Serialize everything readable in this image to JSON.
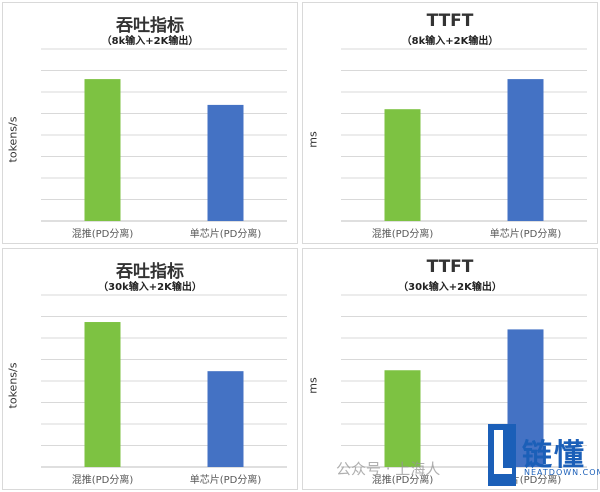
{
  "colors": {
    "green": "#7dc242",
    "blue": "#4472c4",
    "grid": "#d9d9d9",
    "axis": "#bfbfbf"
  },
  "chart_data": [
    {
      "type": "bar",
      "title": "吞吐指标",
      "subtitle": "（8k输入+2K输出）",
      "ylabel": "tokens/s",
      "categories": [
        "混推(PD分离)",
        "单芯片(PD分离)"
      ],
      "values": [
        6.6,
        5.4
      ],
      "ylim": [
        0,
        8
      ],
      "grid": true
    },
    {
      "type": "bar",
      "title": "TTFT",
      "subtitle": "（8k输入+2K输出）",
      "ylabel": "ms",
      "categories": [
        "混推(PD分离)",
        "单芯片(PD分离)"
      ],
      "values": [
        5.2,
        6.6
      ],
      "ylim": [
        0,
        8
      ],
      "grid": true
    },
    {
      "type": "bar",
      "title": "吞吐指标",
      "subtitle": "（30k输入+2K输出）",
      "ylabel": "tokens/s",
      "categories": [
        "混推(PD分离)",
        "单芯片(PD分离)"
      ],
      "values": [
        5.9,
        3.9
      ],
      "ylim": [
        0,
        7
      ],
      "grid": true
    },
    {
      "type": "bar",
      "title": "TTFT",
      "subtitle": "（30k输入+2K输出）",
      "ylabel": "ms",
      "categories": [
        "混推(PD分离)",
        "单芯片(PD分离)"
      ],
      "values": [
        4.5,
        6.4
      ],
      "ylim": [
        0,
        8
      ],
      "grid": true
    }
  ],
  "watermark": "公众号 · 上海人",
  "brand": {
    "name": "链懂",
    "site": "NEATDOWN.COM"
  }
}
